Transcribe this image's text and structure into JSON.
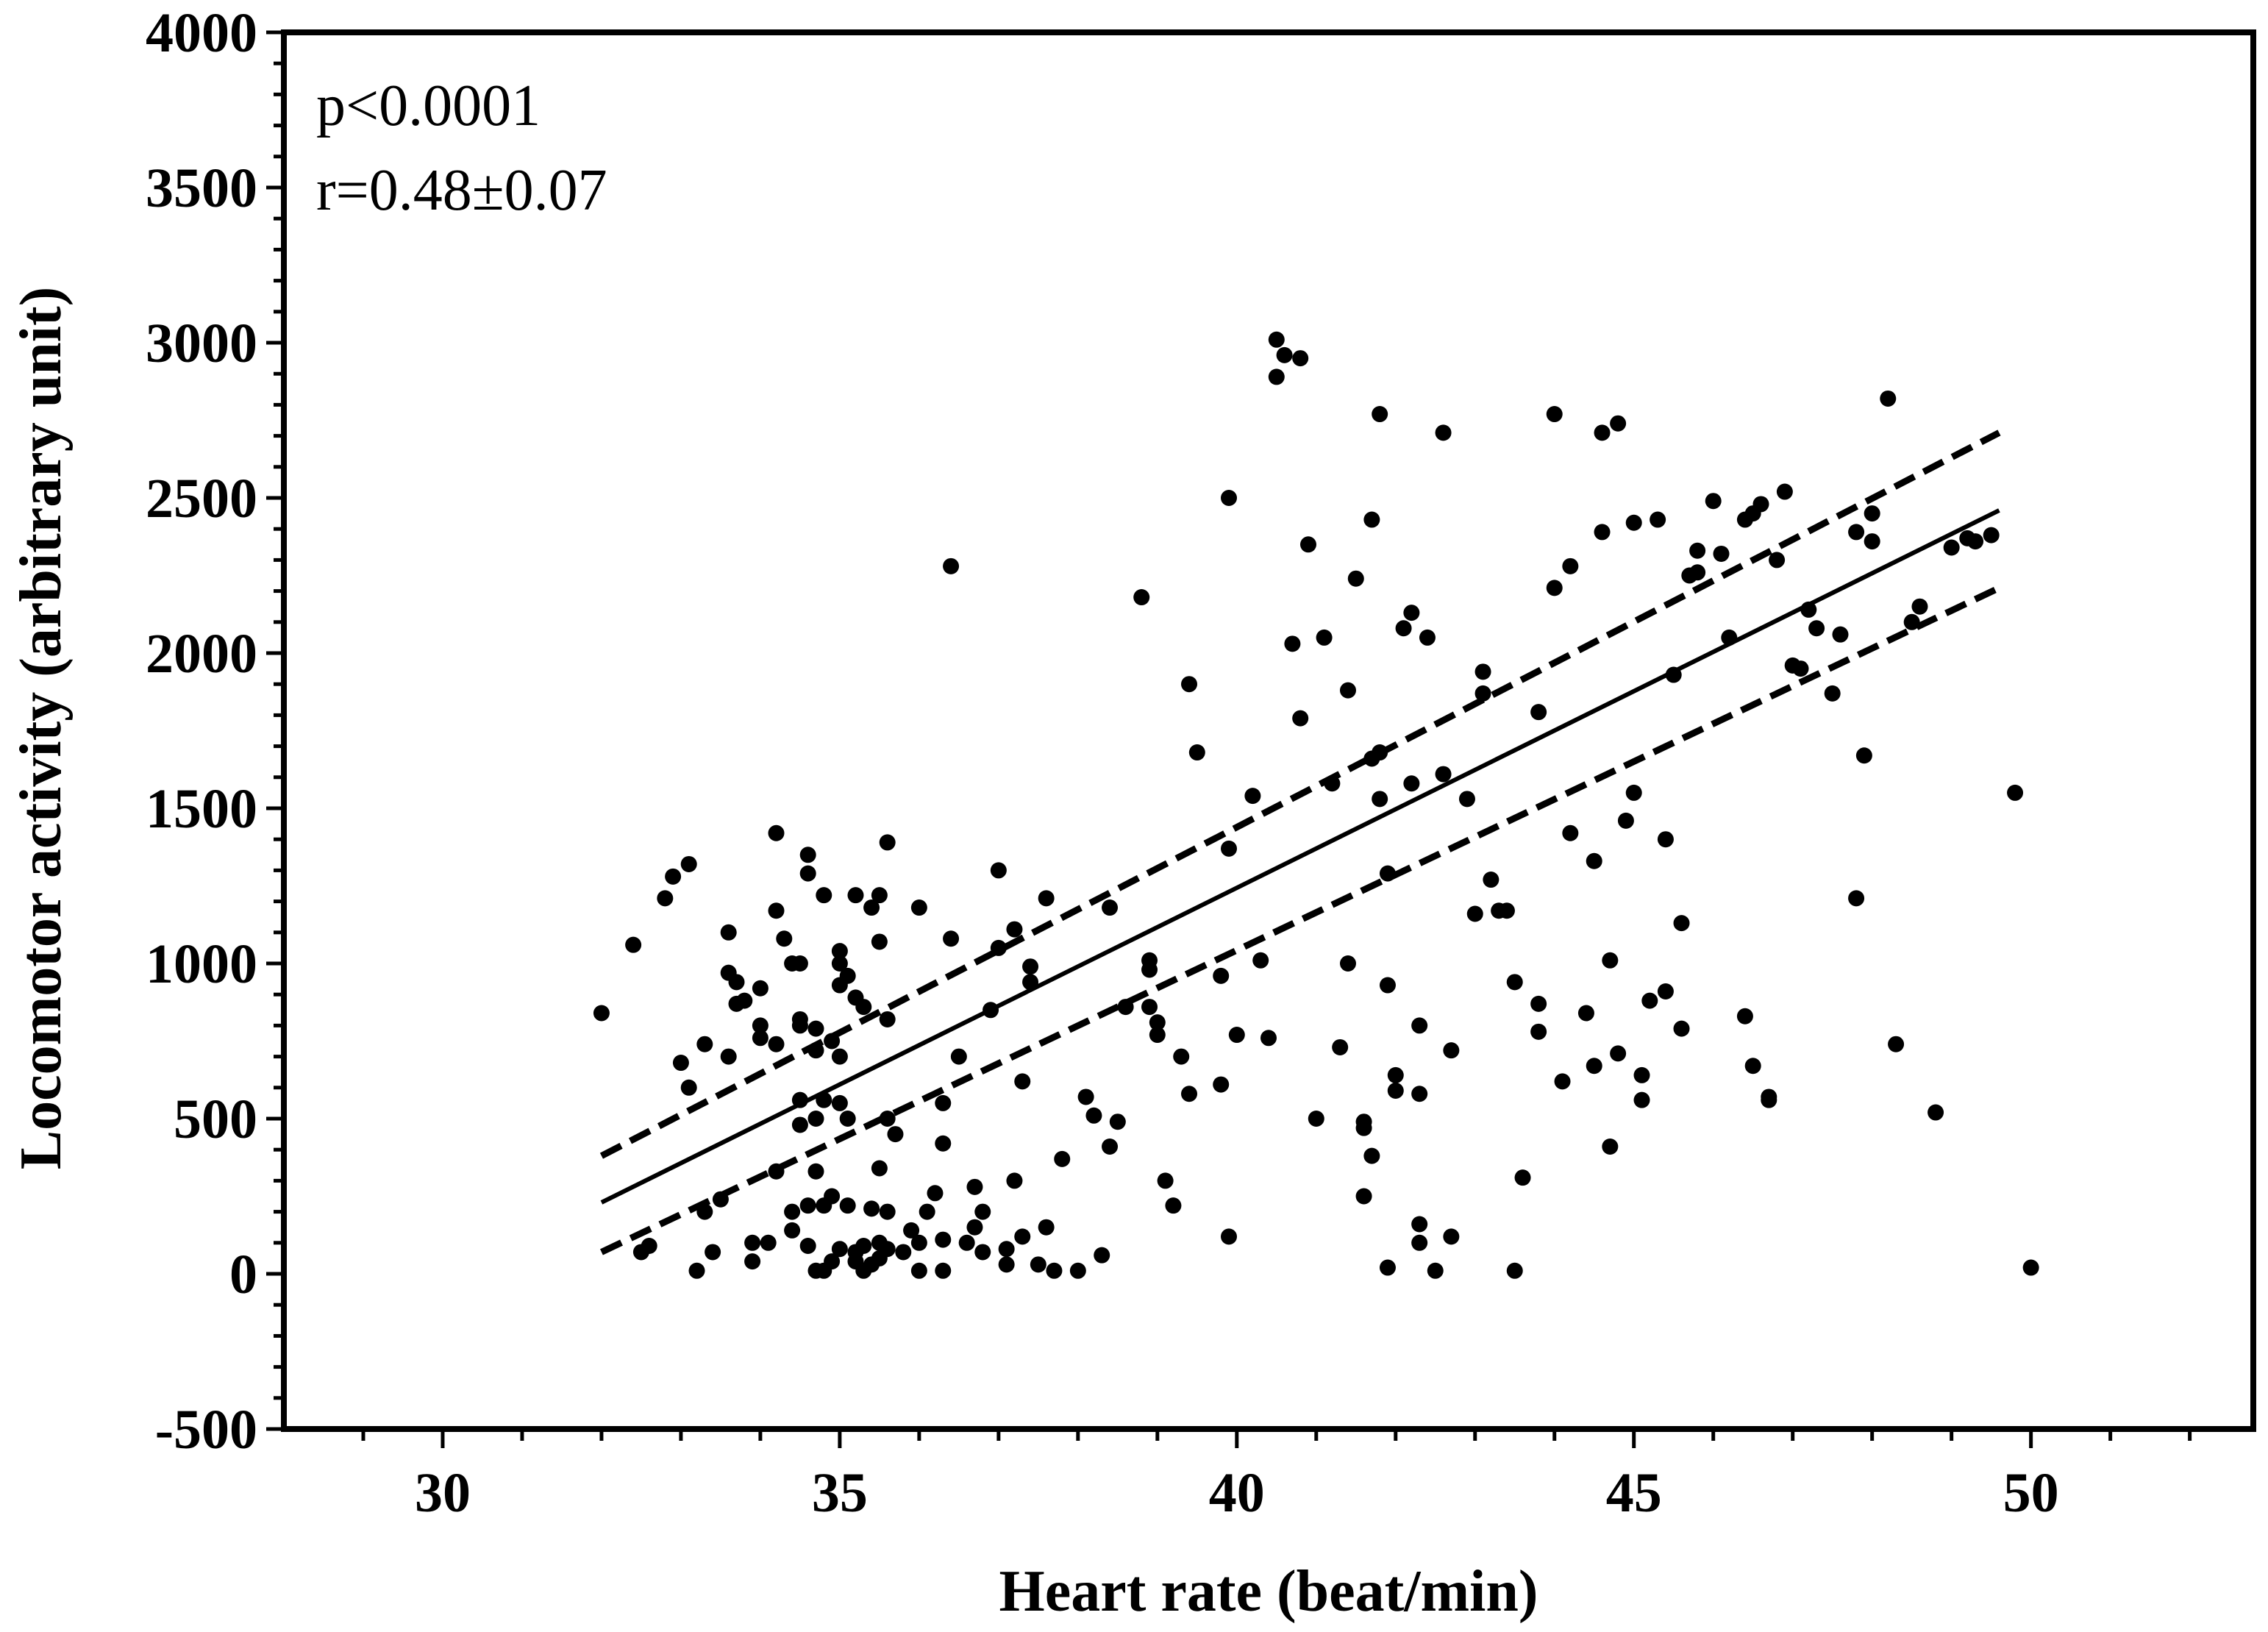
{
  "chart_data": {
    "type": "scatter",
    "title": "",
    "xlabel": "Heart rate (beat/min)",
    "ylabel": "Locomotor activity (arbitrary unit)",
    "xlim": [
      28,
      52.8
    ],
    "ylim": [
      -500,
      4000
    ],
    "x_ticks": [
      30,
      35,
      40,
      45,
      50
    ],
    "x_tick_labels": [
      "30",
      "35",
      "40",
      "45",
      "50"
    ],
    "y_ticks": [
      -500,
      0,
      500,
      1000,
      1500,
      2000,
      2500,
      3000,
      3500,
      4000
    ],
    "y_tick_labels": [
      "-500",
      "0",
      "500",
      "1000",
      "1500",
      "2000",
      "2500",
      "3000",
      "3500",
      "4000"
    ],
    "grid": false,
    "annotations": [
      "p<0.0001",
      "r=0.48±0.07"
    ],
    "regression": {
      "x_range": [
        32,
        49.6
      ],
      "fit": [
        230,
        2460
      ],
      "upper_ci": [
        380,
        2710
      ],
      "lower_ci": [
        70,
        2210
      ]
    },
    "series": [
      {
        "name": "observations",
        "points": [
          [
            32.0,
            840
          ],
          [
            32.4,
            1060
          ],
          [
            32.5,
            70
          ],
          [
            32.6,
            90
          ],
          [
            32.8,
            1210
          ],
          [
            32.9,
            1280
          ],
          [
            33.0,
            680
          ],
          [
            33.1,
            1320
          ],
          [
            33.1,
            600
          ],
          [
            33.2,
            10
          ],
          [
            33.3,
            200
          ],
          [
            33.3,
            740
          ],
          [
            33.4,
            70
          ],
          [
            33.5,
            240
          ],
          [
            33.6,
            1100
          ],
          [
            33.6,
            970
          ],
          [
            33.6,
            700
          ],
          [
            33.7,
            940
          ],
          [
            33.7,
            870
          ],
          [
            33.8,
            880
          ],
          [
            33.9,
            40
          ],
          [
            33.9,
            100
          ],
          [
            34.0,
            920
          ],
          [
            34.0,
            760
          ],
          [
            34.0,
            800
          ],
          [
            34.1,
            100
          ],
          [
            34.2,
            740
          ],
          [
            34.2,
            330
          ],
          [
            34.2,
            1420
          ],
          [
            34.2,
            1170
          ],
          [
            34.3,
            1080
          ],
          [
            34.4,
            1000
          ],
          [
            34.4,
            200
          ],
          [
            34.4,
            140
          ],
          [
            34.5,
            800
          ],
          [
            34.5,
            1000
          ],
          [
            34.5,
            820
          ],
          [
            34.5,
            480
          ],
          [
            34.5,
            560
          ],
          [
            34.6,
            220
          ],
          [
            34.6,
            90
          ],
          [
            34.6,
            1290
          ],
          [
            34.6,
            1350
          ],
          [
            34.7,
            10
          ],
          [
            34.7,
            790
          ],
          [
            34.7,
            330
          ],
          [
            34.7,
            720
          ],
          [
            34.7,
            500
          ],
          [
            34.8,
            560
          ],
          [
            34.8,
            220
          ],
          [
            34.8,
            1220
          ],
          [
            34.8,
            10
          ],
          [
            34.9,
            750
          ],
          [
            34.9,
            40
          ],
          [
            34.9,
            250
          ],
          [
            35.0,
            700
          ],
          [
            35.0,
            1040
          ],
          [
            35.0,
            1000
          ],
          [
            35.0,
            930
          ],
          [
            35.0,
            550
          ],
          [
            35.0,
            80
          ],
          [
            35.1,
            960
          ],
          [
            35.1,
            500
          ],
          [
            35.1,
            220
          ],
          [
            35.2,
            1220
          ],
          [
            35.2,
            890
          ],
          [
            35.2,
            70
          ],
          [
            35.2,
            40
          ],
          [
            35.3,
            860
          ],
          [
            35.3,
            10
          ],
          [
            35.3,
            90
          ],
          [
            35.4,
            1180
          ],
          [
            35.4,
            210
          ],
          [
            35.4,
            30
          ],
          [
            35.5,
            1220
          ],
          [
            35.5,
            1070
          ],
          [
            35.5,
            340
          ],
          [
            35.5,
            100
          ],
          [
            35.5,
            50
          ],
          [
            35.6,
            1390
          ],
          [
            35.6,
            820
          ],
          [
            35.6,
            500
          ],
          [
            35.6,
            200
          ],
          [
            35.6,
            80
          ],
          [
            35.7,
            450
          ],
          [
            35.8,
            70
          ],
          [
            35.9,
            140
          ],
          [
            36.0,
            1180
          ],
          [
            36.0,
            100
          ],
          [
            36.0,
            10
          ],
          [
            36.1,
            200
          ],
          [
            36.2,
            260
          ],
          [
            36.3,
            550
          ],
          [
            36.3,
            420
          ],
          [
            36.3,
            110
          ],
          [
            36.3,
            10
          ],
          [
            36.4,
            2280
          ],
          [
            36.4,
            1080
          ],
          [
            36.5,
            700
          ],
          [
            36.6,
            100
          ],
          [
            36.7,
            150
          ],
          [
            36.7,
            280
          ],
          [
            36.8,
            200
          ],
          [
            36.8,
            70
          ],
          [
            36.9,
            850
          ],
          [
            37.0,
            1300
          ],
          [
            37.0,
            1050
          ],
          [
            37.1,
            80
          ],
          [
            37.1,
            30
          ],
          [
            37.2,
            300
          ],
          [
            37.2,
            1110
          ],
          [
            37.3,
            620
          ],
          [
            37.3,
            120
          ],
          [
            37.4,
            990
          ],
          [
            37.4,
            940
          ],
          [
            37.5,
            30
          ],
          [
            37.6,
            1210
          ],
          [
            37.6,
            150
          ],
          [
            37.7,
            10
          ],
          [
            37.8,
            370
          ],
          [
            38.0,
            10
          ],
          [
            38.1,
            570
          ],
          [
            38.2,
            510
          ],
          [
            38.3,
            60
          ],
          [
            38.4,
            1180
          ],
          [
            38.4,
            410
          ],
          [
            38.5,
            490
          ],
          [
            38.6,
            860
          ],
          [
            38.8,
            2180
          ],
          [
            38.9,
            1010
          ],
          [
            38.9,
            980
          ],
          [
            38.9,
            860
          ],
          [
            39.0,
            810
          ],
          [
            39.0,
            770
          ],
          [
            39.1,
            300
          ],
          [
            39.2,
            220
          ],
          [
            39.3,
            700
          ],
          [
            39.4,
            580
          ],
          [
            39.4,
            1900
          ],
          [
            39.5,
            1680
          ],
          [
            39.8,
            960
          ],
          [
            39.8,
            610
          ],
          [
            39.9,
            1370
          ],
          [
            39.9,
            2500
          ],
          [
            39.9,
            120
          ],
          [
            40.0,
            770
          ],
          [
            40.2,
            1540
          ],
          [
            40.3,
            1010
          ],
          [
            40.4,
            760
          ],
          [
            40.5,
            3010
          ],
          [
            40.5,
            2890
          ],
          [
            40.6,
            2960
          ],
          [
            40.7,
            2030
          ],
          [
            40.8,
            2950
          ],
          [
            40.8,
            1790
          ],
          [
            40.9,
            2350
          ],
          [
            41.0,
            500
          ],
          [
            41.1,
            2050
          ],
          [
            41.2,
            1580
          ],
          [
            41.3,
            730
          ],
          [
            41.4,
            1000
          ],
          [
            41.4,
            1880
          ],
          [
            41.5,
            2240
          ],
          [
            41.6,
            470
          ],
          [
            41.6,
            490
          ],
          [
            41.6,
            250
          ],
          [
            41.7,
            2430
          ],
          [
            41.7,
            1660
          ],
          [
            41.7,
            380
          ],
          [
            41.8,
            1680
          ],
          [
            41.8,
            1530
          ],
          [
            41.8,
            2770
          ],
          [
            41.9,
            930
          ],
          [
            41.9,
            1290
          ],
          [
            41.9,
            20
          ],
          [
            42.0,
            640
          ],
          [
            42.0,
            590
          ],
          [
            42.1,
            2080
          ],
          [
            42.2,
            2130
          ],
          [
            42.2,
            1580
          ],
          [
            42.3,
            800
          ],
          [
            42.3,
            580
          ],
          [
            42.3,
            100
          ],
          [
            42.3,
            160
          ],
          [
            42.4,
            2050
          ],
          [
            42.5,
            10
          ],
          [
            42.6,
            1610
          ],
          [
            42.6,
            2710
          ],
          [
            42.7,
            720
          ],
          [
            42.7,
            120
          ],
          [
            42.9,
            1530
          ],
          [
            43.0,
            1160
          ],
          [
            43.1,
            1940
          ],
          [
            43.1,
            1870
          ],
          [
            43.2,
            1270
          ],
          [
            43.3,
            1170
          ],
          [
            43.4,
            1170
          ],
          [
            43.5,
            940
          ],
          [
            43.5,
            10
          ],
          [
            43.6,
            310
          ],
          [
            43.8,
            1810
          ],
          [
            43.8,
            780
          ],
          [
            43.8,
            870
          ],
          [
            44.0,
            2770
          ],
          [
            44.0,
            2210
          ],
          [
            44.1,
            620
          ],
          [
            44.2,
            2280
          ],
          [
            44.2,
            1420
          ],
          [
            44.4,
            840
          ],
          [
            44.5,
            670
          ],
          [
            44.5,
            1330
          ],
          [
            44.6,
            2390
          ],
          [
            44.6,
            2710
          ],
          [
            44.7,
            1010
          ],
          [
            44.7,
            410
          ],
          [
            44.8,
            2740
          ],
          [
            44.8,
            710
          ],
          [
            44.9,
            1460
          ],
          [
            45.0,
            1550
          ],
          [
            45.0,
            2420
          ],
          [
            45.1,
            560
          ],
          [
            45.1,
            640
          ],
          [
            45.2,
            880
          ],
          [
            45.3,
            2430
          ],
          [
            45.4,
            1400
          ],
          [
            45.4,
            910
          ],
          [
            45.5,
            1930
          ],
          [
            45.6,
            790
          ],
          [
            45.6,
            1130
          ],
          [
            45.7,
            2250
          ],
          [
            45.8,
            2330
          ],
          [
            45.8,
            2260
          ],
          [
            46.0,
            2490
          ],
          [
            46.1,
            2320
          ],
          [
            46.2,
            2050
          ],
          [
            46.4,
            2430
          ],
          [
            46.4,
            830
          ],
          [
            46.5,
            2450
          ],
          [
            46.5,
            670
          ],
          [
            46.6,
            2480
          ],
          [
            46.7,
            570
          ],
          [
            46.7,
            560
          ],
          [
            46.8,
            2300
          ],
          [
            46.9,
            2520
          ],
          [
            47.0,
            1960
          ],
          [
            47.1,
            1950
          ],
          [
            47.2,
            2140
          ],
          [
            47.3,
            2080
          ],
          [
            47.5,
            1870
          ],
          [
            47.6,
            2060
          ],
          [
            47.8,
            2390
          ],
          [
            47.8,
            1210
          ],
          [
            47.9,
            1670
          ],
          [
            48.0,
            2360
          ],
          [
            48.0,
            2450
          ],
          [
            48.2,
            2820
          ],
          [
            48.3,
            740
          ],
          [
            48.5,
            2100
          ],
          [
            48.6,
            2150
          ],
          [
            48.8,
            520
          ],
          [
            49.0,
            2340
          ],
          [
            49.2,
            2370
          ],
          [
            49.3,
            2360
          ],
          [
            49.5,
            2380
          ],
          [
            49.8,
            1550
          ],
          [
            50.0,
            20
          ]
        ]
      }
    ]
  }
}
